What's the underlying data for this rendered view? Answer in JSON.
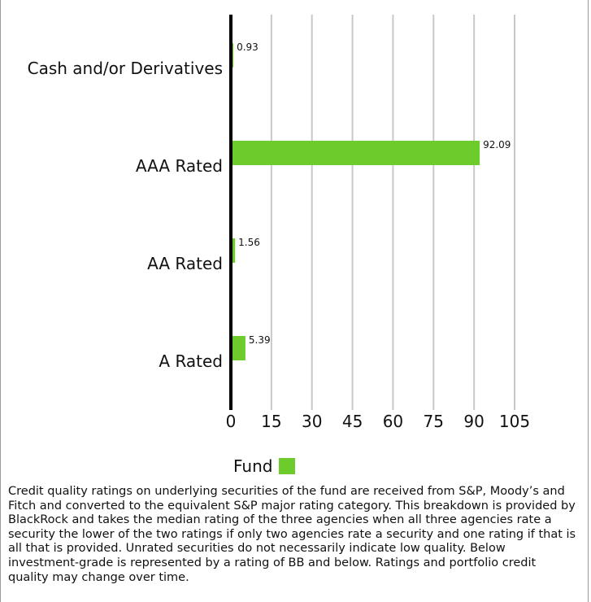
{
  "chart_data": {
    "type": "bar",
    "orientation": "horizontal",
    "categories": [
      "Cash and/or Derivatives",
      "AAA Rated",
      "AA Rated",
      "A Rated"
    ],
    "series": [
      {
        "name": "Fund",
        "values": [
          0.93,
          92.09,
          1.56,
          5.39
        ],
        "color": "#6dcb2c"
      }
    ],
    "data_labels": [
      "0.93",
      "92.09",
      "1.56",
      "5.39"
    ],
    "xlim": [
      0,
      105
    ],
    "x_ticks": [
      0,
      15,
      30,
      45,
      60,
      75,
      90,
      105
    ],
    "grid": "vertical",
    "legend": "bottom-center"
  },
  "legend": {
    "label": "Fund",
    "color": "#6dcb2c"
  },
  "footnote": "Credit quality ratings on underlying securities of the fund are received from S&P, Moody’s and Fitch and converted to the equivalent S&P major rating category. This breakdown is provided by BlackRock and takes the median rating of the three agencies when all three agencies rate a security the lower of the two ratings if only two agencies rate a security and one rating if that is all that is provided. Unrated securities do not necessarily indicate low quality. Below investment-grade is represented by a rating of BB and below. Ratings and portfolio credit quality may change over time."
}
